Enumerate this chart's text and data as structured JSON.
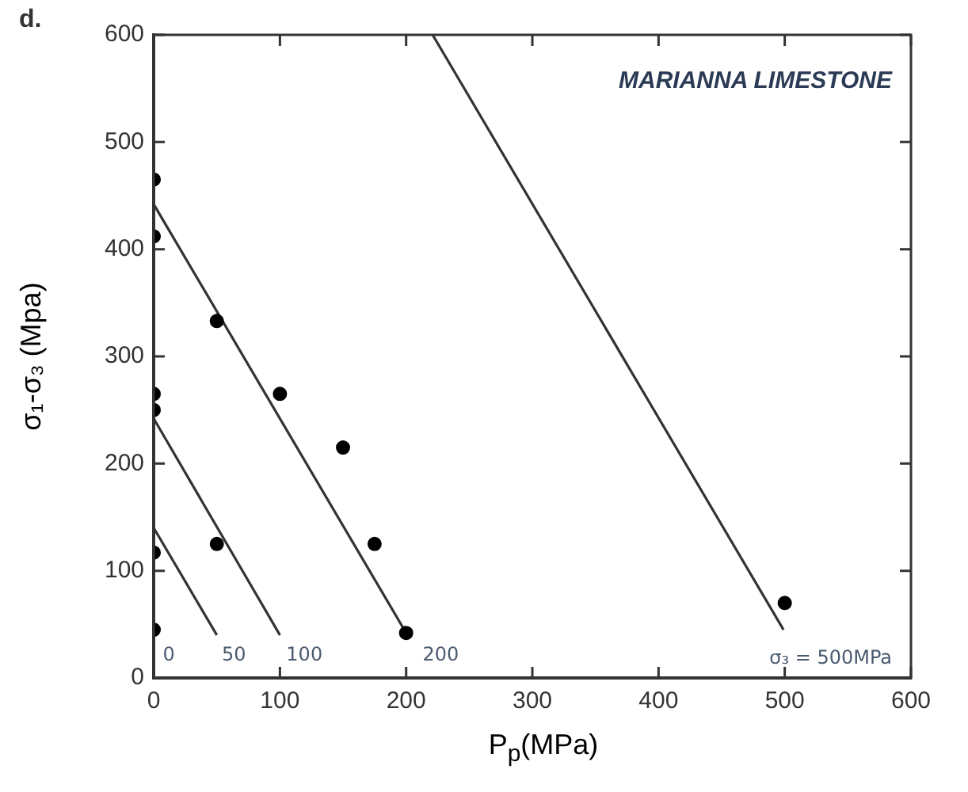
{
  "chart_data": {
    "type": "scatter",
    "title": "d.",
    "xlabel": "P$_{p}$(MPa)",
    "ylabel": "σ₁-σ₃ (Mpa)",
    "xlim": [
      0,
      600
    ],
    "xticks": [
      0,
      100,
      200,
      300,
      400,
      500,
      600
    ],
    "ylim": [
      0,
      600
    ],
    "yticks": [
      0,
      100,
      200,
      300,
      400,
      500,
      600
    ],
    "grid": false,
    "legend": false,
    "marker": "circle",
    "series": [
      {
        "color": "#000000",
        "x": [
          0,
          0,
          0,
          0,
          0,
          0,
          50,
          100,
          150,
          175,
          200,
          50,
          500
        ],
        "values": [
          465,
          412,
          265,
          250,
          117,
          45,
          333,
          265,
          215,
          125,
          42,
          125,
          70
        ]
      },
      {
        "type": "line",
        "color": "#333333",
        "marker": "none",
        "x": [
          0,
          50
        ],
        "values": [
          140,
          40
        ]
      },
      {
        "type": "line",
        "color": "#333333",
        "marker": "none",
        "x": [
          0,
          100
        ],
        "values": [
          242,
          40
        ]
      },
      {
        "type": "line",
        "color": "#333333",
        "marker": "none",
        "x": [
          0,
          200
        ],
        "values": [
          442,
          42
        ]
      },
      {
        "type": "line",
        "color": "#333333",
        "marker": "none",
        "x": [
          221,
          499
        ],
        "values": [
          600,
          45
        ]
      }
    ],
    "annotations": [
      "MARIANNA LIMESTONE",
      "0",
      "50",
      "100",
      "200",
      "σ₃ = 500MPa"
    ]
  }
}
